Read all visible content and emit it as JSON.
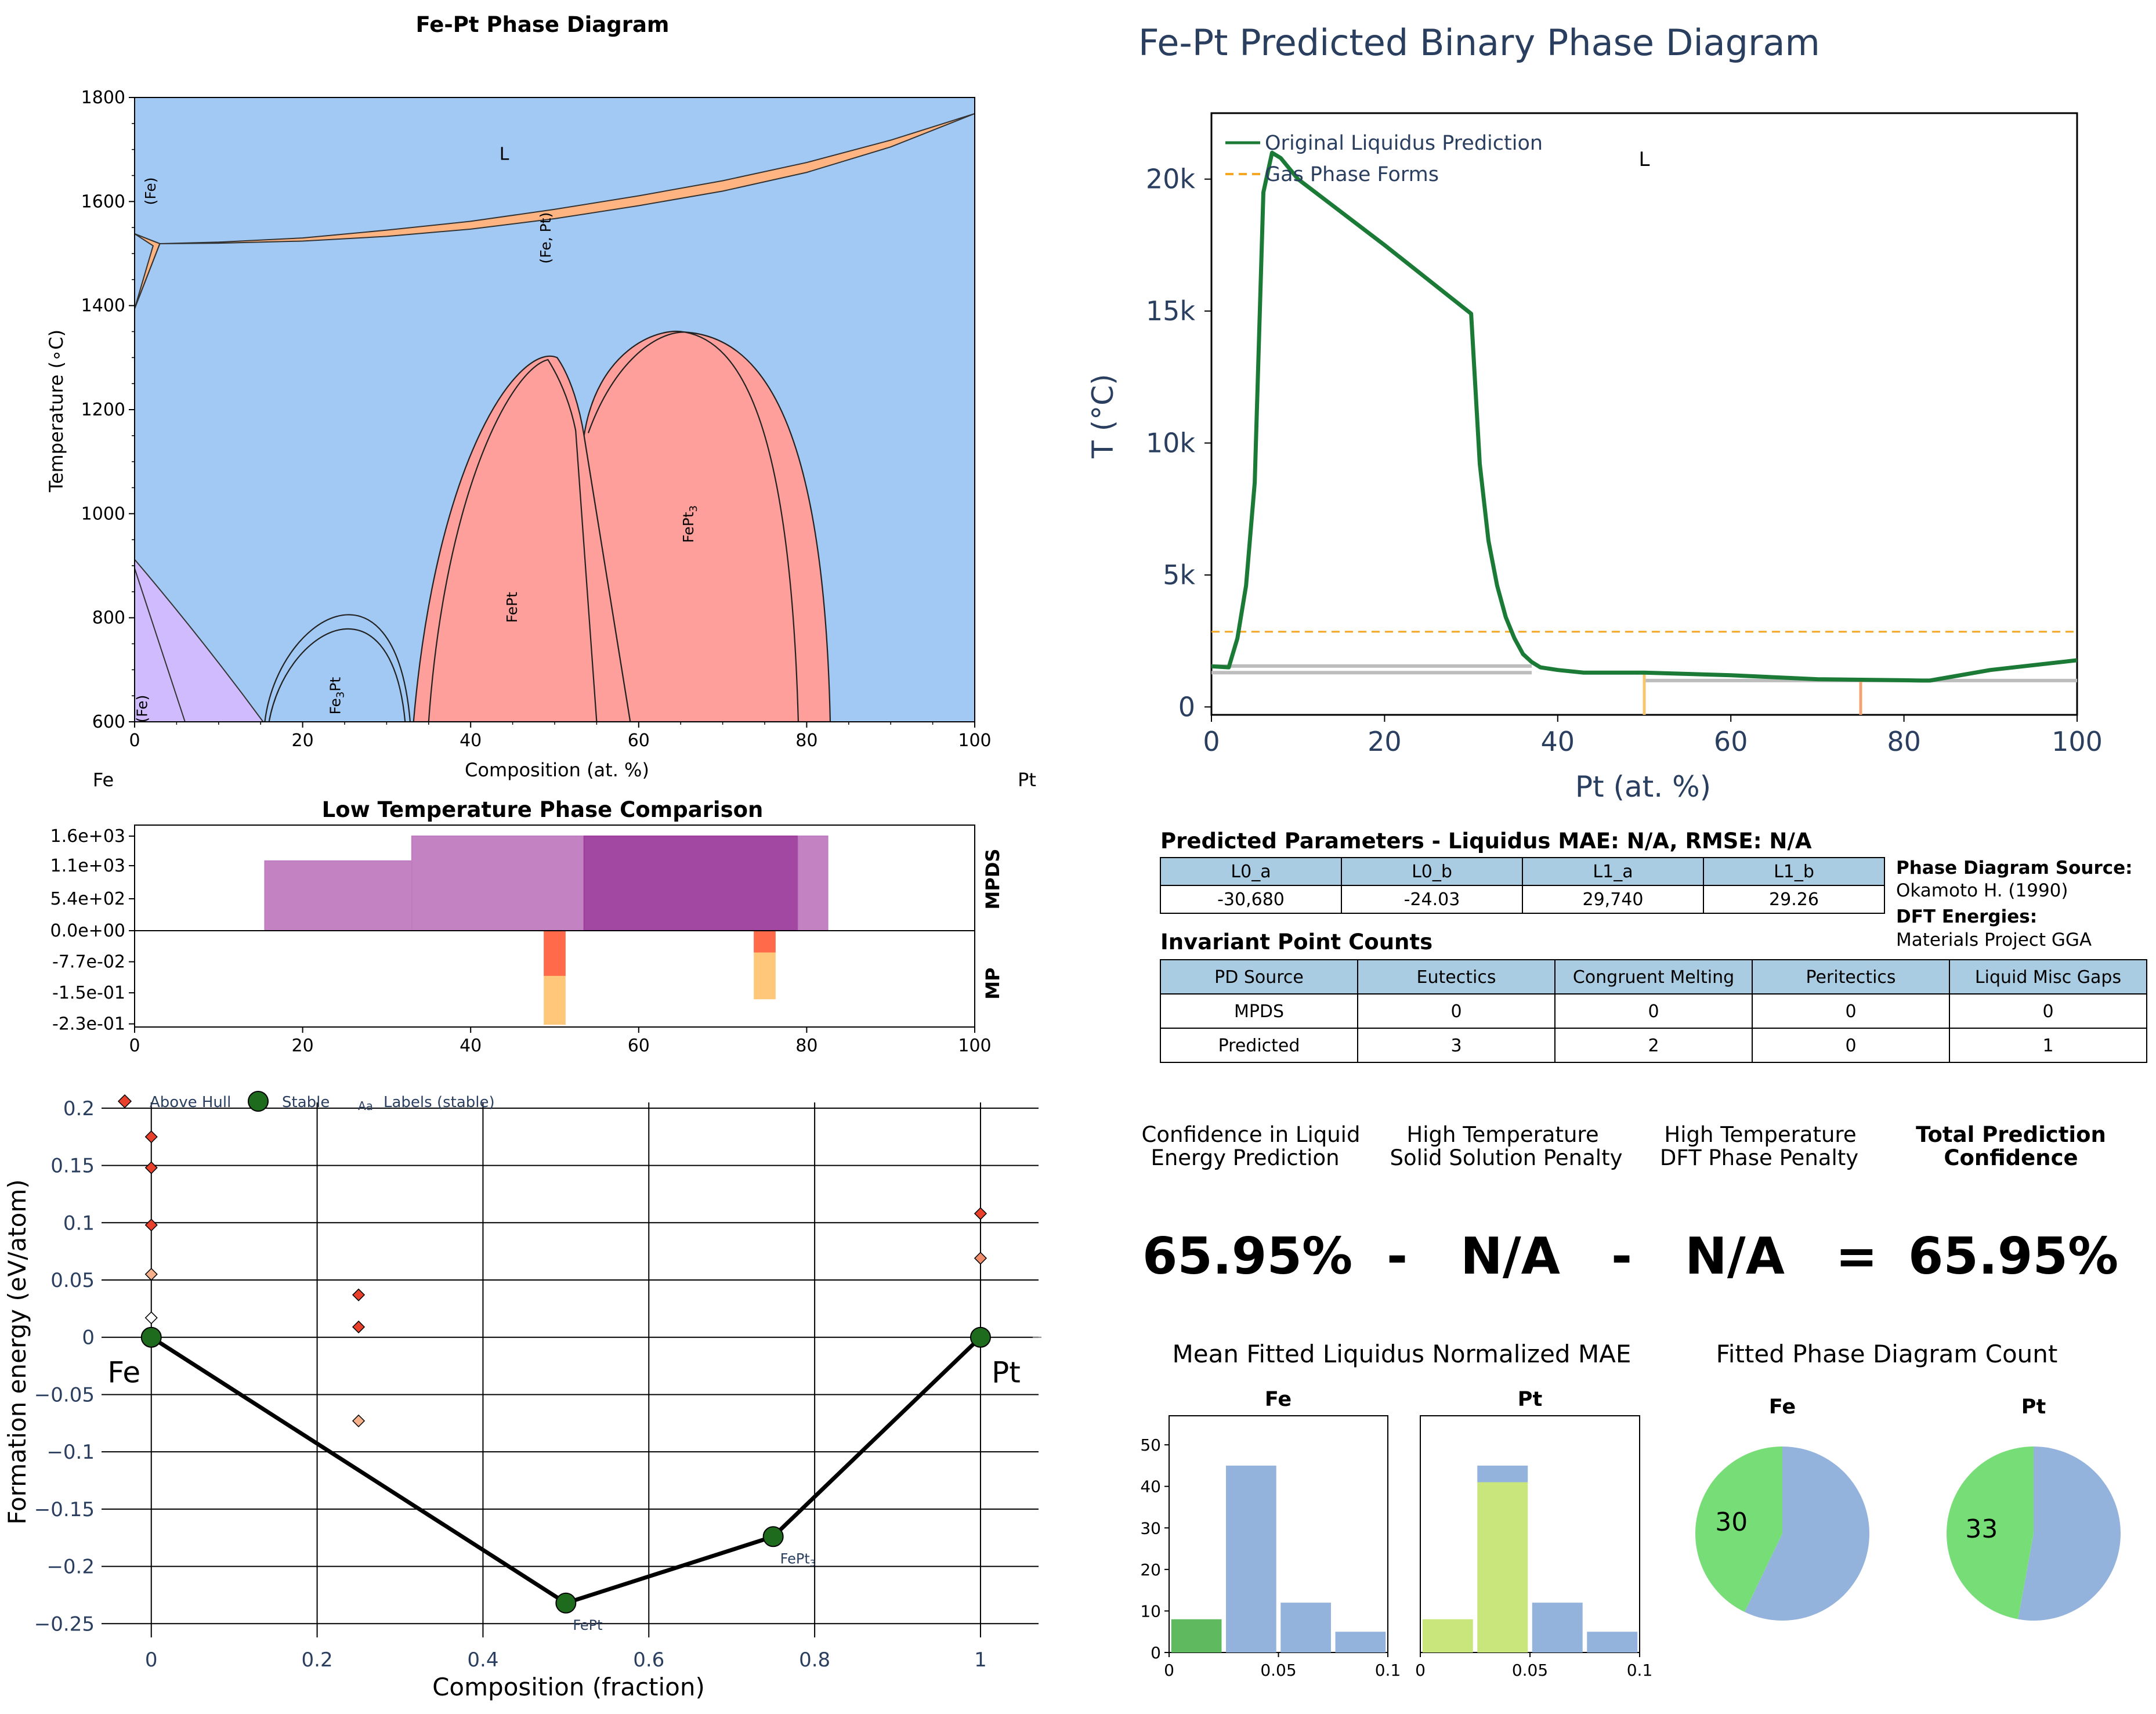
{
  "chart_data": [
    {
      "id": "fe-pt-phase-diagram",
      "type": "phase-diagram",
      "title": "Fe-Pt Phase Diagram",
      "xlabel": "Composition (at. %)",
      "ylabel": "Temperature (∘C)",
      "xlim": [
        0,
        100
      ],
      "ylim": [
        600,
        1800
      ],
      "xticks": [
        0,
        20,
        40,
        60,
        80,
        100
      ],
      "yticks": [
        600,
        800,
        1000,
        1200,
        1400,
        1600,
        1800
      ],
      "left_element": "Fe",
      "right_element": "Pt",
      "colors": {
        "liquid": "#a1c9f4",
        "solid_solution": "#ffb482",
        "ordered": "#ff9f9b",
        "bcc": "#d0bbff"
      },
      "phase_labels": [
        {
          "text": "L",
          "x": 44,
          "y": 1680,
          "rotate": 0
        },
        {
          "text": "(Fe)",
          "x": 2.5,
          "y": 1620,
          "rotate": -90
        },
        {
          "text": "(Fe, Pt)",
          "x": 49.5,
          "y": 1530,
          "rotate": -90
        },
        {
          "text": "Fe3Pt",
          "x": 24.5,
          "y": 650,
          "rotate": -90
        },
        {
          "text": "FePt",
          "x": 45.5,
          "y": 820,
          "rotate": -90
        },
        {
          "text": "FePt3",
          "x": 66.5,
          "y": 980,
          "rotate": -90
        },
        {
          "text": "(Fe)",
          "x": 1.5,
          "y": 625,
          "rotate": -90
        }
      ],
      "liquidus": [
        [
          0,
          1538
        ],
        [
          3,
          1519
        ],
        [
          10,
          1522
        ],
        [
          20,
          1530
        ],
        [
          30,
          1545
        ],
        [
          40,
          1562
        ],
        [
          50,
          1585
        ],
        [
          60,
          1611
        ],
        [
          70,
          1640
        ],
        [
          80,
          1675
        ],
        [
          90,
          1718
        ],
        [
          100,
          1769
        ]
      ],
      "solidus": [
        [
          3,
          1519
        ],
        [
          10,
          1520
        ],
        [
          20,
          1524
        ],
        [
          30,
          1533
        ],
        [
          40,
          1547
        ],
        [
          50,
          1567
        ],
        [
          60,
          1592
        ],
        [
          70,
          1620
        ],
        [
          80,
          1656
        ],
        [
          90,
          1705
        ],
        [
          100,
          1769
        ]
      ]
    },
    {
      "id": "predicted-binary",
      "type": "line",
      "title": "Fe-Pt Predicted Binary Phase Diagram",
      "xlabel": "Pt (at. %)",
      "ylabel": "T (°C)",
      "xlim": [
        0,
        100
      ],
      "ylim": [
        -300,
        22500
      ],
      "xticks": [
        0,
        20,
        40,
        60,
        80,
        100
      ],
      "yticks": [
        0,
        5000,
        10000,
        15000,
        20000
      ],
      "ytick_labels": [
        "0",
        "5k",
        "10k",
        "15k",
        "20k"
      ],
      "liquid_label": "L",
      "liquid_label_pos": [
        50,
        20500
      ],
      "series": [
        {
          "name": "Original Liquidus Prediction",
          "color": "#1a7a36",
          "x": [
            0,
            2,
            3,
            4,
            5,
            5.5,
            6,
            7,
            8,
            10,
            20,
            30,
            31,
            32,
            33,
            34,
            35,
            36,
            37,
            38,
            40,
            43,
            50,
            60,
            70,
            75,
            80,
            82,
            83,
            90,
            100
          ],
          "y": [
            1538,
            1500,
            2600,
            4600,
            8500,
            14000,
            19500,
            21000,
            20800,
            20000,
            17500,
            14900,
            9200,
            6300,
            4600,
            3400,
            2600,
            2000,
            1700,
            1500,
            1400,
            1300,
            1300,
            1200,
            1050,
            1030,
            1010,
            1000,
            1000,
            1400,
            1769
          ]
        },
        {
          "name": "Gas Phase Forms",
          "color": "#f5a623",
          "dash": true,
          "y": 2850
        }
      ],
      "solid_lines": [
        {
          "x": [
            0,
            37
          ],
          "y": 1550
        },
        {
          "x": [
            0,
            37
          ],
          "y": 1300
        },
        {
          "x": [
            50,
            100
          ],
          "y": 1000
        }
      ],
      "markers": [
        {
          "x": 50,
          "y0": -300,
          "y1": 1300,
          "color": "#f7c66a"
        },
        {
          "x": 75,
          "y0": -300,
          "y1": 1030,
          "color": "#f5a070"
        }
      ]
    },
    {
      "id": "low-temp-phase-comparison",
      "type": "bar",
      "title": "Low Temperature Phase Comparison",
      "xlim": [
        0,
        100
      ],
      "xticks": [
        0,
        20,
        40,
        60,
        80,
        100
      ],
      "yticks": [
        "1.6e+03",
        "1.1e+03",
        "5.4e+02",
        "0.0e+00",
        "-7.7e-02",
        "-1.5e-01",
        "-2.3e-01"
      ],
      "row_labels": [
        "MPDS",
        "MP"
      ],
      "mpds": [
        {
          "x0": 15.5,
          "x1": 33,
          "top": 1180,
          "color": "#c07cc0"
        },
        {
          "x0": 33,
          "x1": 53.5,
          "top": 1600,
          "color": "#c07cc0"
        },
        {
          "x0": 53.5,
          "x1": 79,
          "top": 1600,
          "color": "#9d3e9d"
        },
        {
          "x0": 79,
          "x1": 82.5,
          "top": 1600,
          "color": "#c07cc0"
        }
      ],
      "mp": [
        {
          "x0": 48.7,
          "x1": 51.3,
          "bottom": -0.233,
          "color": "#ffc77a"
        },
        {
          "x0": 48.7,
          "x1": 51.3,
          "bottom": -0.112,
          "color": "#ff6b4a"
        },
        {
          "x0": 73.7,
          "x1": 76.3,
          "bottom": -0.17,
          "color": "#ffc77a"
        },
        {
          "x0": 73.7,
          "x1": 76.3,
          "bottom": -0.054,
          "color": "#ff6b4a"
        }
      ]
    },
    {
      "id": "convex-hull",
      "type": "scatter",
      "xlabel": "Composition (fraction)",
      "ylabel": "Formation energy (eV/atom)",
      "xlim": [
        -0.06,
        1.07
      ],
      "ylim": [
        -0.262,
        0.205
      ],
      "xticks": [
        0,
        0.2,
        0.4,
        0.6,
        0.8,
        1
      ],
      "xtick_labels": [
        "0",
        "0.2",
        "0.4",
        "0.6",
        "0.8",
        "1"
      ],
      "yticks": [
        0.2,
        0.15,
        0.1,
        0.05,
        0,
        -0.05,
        -0.1,
        -0.15,
        -0.2,
        -0.25
      ],
      "ytick_labels": [
        "0.2",
        "0.15",
        "0.1",
        "0.05",
        "0",
        "−0.05",
        "−0.1",
        "−0.15",
        "−0.2",
        "−0.25"
      ],
      "legend": [
        "Above Hull",
        "Stable",
        "Labels (stable)"
      ],
      "legend_label_glyph": "Aa",
      "hull": [
        [
          0,
          0
        ],
        [
          0.5,
          -0.232
        ],
        [
          0.75,
          -0.174
        ],
        [
          1,
          0
        ]
      ],
      "stable": [
        {
          "x": 0,
          "y": 0,
          "label": "Fe",
          "big": true
        },
        {
          "x": 0.5,
          "y": -0.232,
          "label": "FePt",
          "big": false
        },
        {
          "x": 0.75,
          "y": -0.174,
          "label": "FePt3",
          "big": false
        },
        {
          "x": 1,
          "y": 0,
          "label": "Pt",
          "big": true
        }
      ],
      "above_hull": [
        {
          "x": 0,
          "y": 0.175,
          "color": "#e8402a"
        },
        {
          "x": 0,
          "y": 0.148,
          "color": "#e8402a"
        },
        {
          "x": 0,
          "y": 0.098,
          "color": "#e8402a"
        },
        {
          "x": 0,
          "y": 0.055,
          "color": "#f6b18a"
        },
        {
          "x": 0,
          "y": 0.017,
          "color": "#ffffff"
        },
        {
          "x": 0.25,
          "y": 0.037,
          "color": "#e8402a"
        },
        {
          "x": 0.25,
          "y": 0.009,
          "color": "#e8402a"
        },
        {
          "x": 0.25,
          "y": -0.073,
          "color": "#f6b18a"
        },
        {
          "x": 1,
          "y": 0.108,
          "color": "#e8402a"
        },
        {
          "x": 1,
          "y": 0.069,
          "color": "#f08c6b"
        }
      ]
    },
    {
      "id": "mae-hist-fe",
      "type": "bar",
      "title": "Fe",
      "xlim": [
        0,
        0.1
      ],
      "ylim": [
        0,
        57
      ],
      "xticks": [
        0,
        0.05,
        0.1
      ],
      "xtick_labels": [
        "0",
        "0.05",
        "0.1"
      ],
      "yticks": [
        0,
        10,
        20,
        30,
        40,
        50
      ],
      "bars": [
        {
          "x0": 0.001,
          "x1": 0.024,
          "value": 8,
          "base": 0,
          "color": "#5fba5f"
        },
        {
          "x0": 0.026,
          "x1": 0.049,
          "value": 45,
          "base": 0,
          "color": "#94b3dc"
        },
        {
          "x0": 0.051,
          "x1": 0.074,
          "value": 12,
          "base": 0,
          "color": "#94b3dc"
        },
        {
          "x0": 0.076,
          "x1": 0.099,
          "value": 5,
          "base": 0,
          "color": "#94b3dc"
        }
      ]
    },
    {
      "id": "mae-hist-pt",
      "type": "bar",
      "title": "Pt",
      "xlim": [
        0,
        0.1
      ],
      "ylim": [
        0,
        57
      ],
      "xticks": [
        0,
        0.05,
        0.1
      ],
      "xtick_labels": [
        "0",
        "0.05",
        "0.1"
      ],
      "bars": [
        {
          "x0": 0.001,
          "x1": 0.024,
          "value": 8,
          "base": 0,
          "color": "#c8e67c"
        },
        {
          "x0": 0.026,
          "x1": 0.049,
          "value": 41,
          "base": 0,
          "color": "#c8e67c"
        },
        {
          "x0": 0.026,
          "x1": 0.049,
          "value": 4,
          "base": 41,
          "color": "#94b3dc"
        },
        {
          "x0": 0.051,
          "x1": 0.074,
          "value": 12,
          "base": 0,
          "color": "#94b3dc"
        },
        {
          "x0": 0.076,
          "x1": 0.099,
          "value": 5,
          "base": 0,
          "color": "#94b3dc"
        }
      ]
    },
    {
      "id": "count-pie-fe",
      "type": "pie",
      "title": "Fe",
      "slices": [
        {
          "value": 30,
          "label": "30",
          "color": "#77dd77"
        },
        {
          "value": 40,
          "label": "",
          "color": "#94b3dc"
        }
      ]
    },
    {
      "id": "count-pie-pt",
      "type": "pie",
      "title": "Pt",
      "slices": [
        {
          "value": 33,
          "label": "33",
          "color": "#77dd77"
        },
        {
          "value": 37,
          "label": "",
          "color": "#94b3dc"
        }
      ]
    }
  ],
  "panels": {
    "params": {
      "title": "Predicted Parameters - Liquidus MAE: N/A, RMSE: N/A",
      "headers": [
        "L0_a",
        "L0_b",
        "L1_a",
        "L1_b"
      ],
      "values": [
        "-30,680",
        "-24.03",
        "29,740",
        "29.26"
      ],
      "source_label": "Phase Diagram Source:",
      "source_value": "Okamoto H. (1990)",
      "dft_label": "DFT Energies:",
      "dft_value": "Materials Project GGA"
    },
    "invariants": {
      "title": "Invariant Point Counts",
      "headers": [
        "PD Source",
        "Eutectics",
        "Congruent Melting",
        "Peritectics",
        "Liquid Misc Gaps"
      ],
      "rows": [
        [
          "MPDS",
          "0",
          "0",
          "0",
          "0"
        ],
        [
          "Predicted",
          "3",
          "2",
          "0",
          "1"
        ]
      ]
    },
    "confidence": {
      "headings": [
        [
          "Confidence in Liquid",
          "Energy Prediction"
        ],
        [
          "High Temperature",
          "Solid Solution Penalty"
        ],
        [
          "High Temperature",
          "DFT Phase Penalty"
        ],
        [
          "Total Prediction",
          "Confidence"
        ]
      ],
      "values": [
        "65.95%",
        "-",
        "N/A",
        "-",
        "N/A",
        "=",
        "65.95%"
      ]
    },
    "mae_title": "Mean Fitted Liquidus Normalized MAE",
    "count_title": "Fitted Phase Diagram Count"
  }
}
